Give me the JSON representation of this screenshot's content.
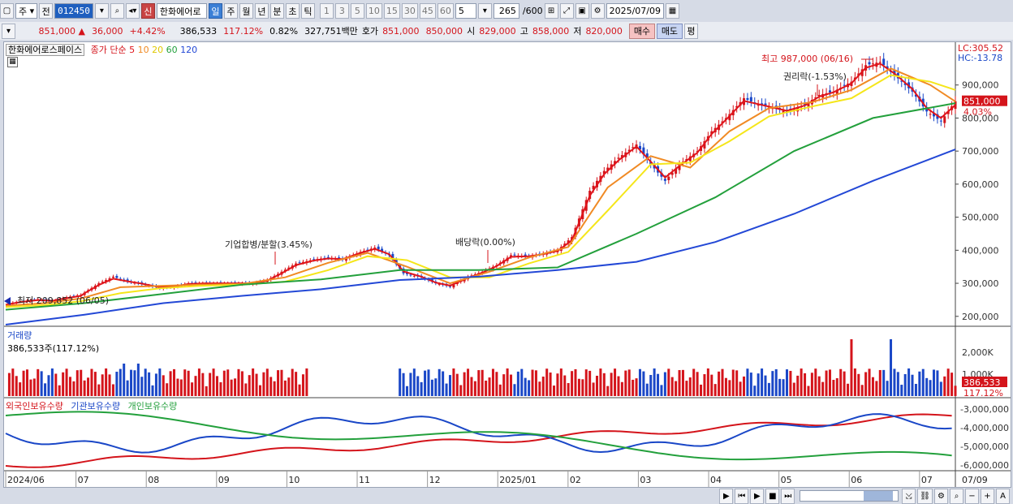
{
  "toolbar": {
    "period_main": "주",
    "prev_label": "전",
    "code": "012450",
    "new_badge": "신",
    "stock_name": "한화에어로",
    "periods": [
      "일",
      "주",
      "월",
      "년",
      "분",
      "초",
      "틱"
    ],
    "intervals": [
      "1",
      "3",
      "5",
      "10",
      "15",
      "30",
      "45",
      "60"
    ],
    "interval_value": "5",
    "count_value": "265",
    "count_total": "/600",
    "date": "2025/07/09"
  },
  "info": {
    "price": "851,000",
    "change": "36,000",
    "change_pct": "+4.42%",
    "volume": "386,533",
    "vol_ratio": "117.12%",
    "turnover": "0.82%",
    "amount": "327,751백만",
    "quote_label": "호가",
    "ask": "851,000",
    "bid": "850,000",
    "open_label": "시",
    "open": "829,000",
    "high_label": "고",
    "high": "858,000",
    "low_label": "저",
    "low": "820,000",
    "buy_label": "매수",
    "sell_label": "매도",
    "eval_label": "평"
  },
  "chart_data": {
    "type": "line",
    "title": "한화에어로스페이스",
    "legend": [
      "종가 단순",
      "5",
      "10",
      "20",
      "60",
      "120"
    ],
    "y_axis": [
      "900,000",
      "800,000",
      "700,000",
      "600,000",
      "500,000",
      "400,000",
      "300,000",
      "200,000"
    ],
    "ylim": [
      170000,
      1000000
    ],
    "x_axis": [
      "2024/06",
      "07",
      "08",
      "09",
      "10",
      "11",
      "12",
      "2025/01",
      "02",
      "03",
      "04",
      "05",
      "06",
      "07"
    ],
    "x_right_label": "07/09",
    "annotations": {
      "high": "최고 987,000 (06/16)",
      "low": "최저 209,852 (06/05)",
      "merger": "기업합병/분할(3.45%)",
      "dividend": "배당락(0.00%)",
      "rights": "권리락(-1.53%)"
    },
    "lc_label": "LC:305.52",
    "hc_label": "HC:-13.78",
    "price_tag": "851,000",
    "pct_tag": "4.03%",
    "series": [
      {
        "name": "종가",
        "color": "#1a47c7",
        "x": [
          0,
          4,
          9,
          13,
          17,
          21,
          22,
          26,
          30,
          34,
          38,
          43,
          47,
          51,
          56,
          60,
          64,
          69,
          73,
          77,
          81,
          86,
          90,
          94,
          99,
          103,
          107,
          111,
          116,
          120,
          124,
          129,
          133,
          137,
          141,
          146,
          150,
          154,
          158,
          163,
          167,
          171,
          176,
          180,
          184,
          188,
          193,
          197,
          201,
          206,
          210,
          214,
          218,
          223,
          227,
          231,
          236,
          240,
          244,
          248,
          253,
          257,
          261,
          265
        ],
        "values": [
          238000,
          245000,
          252000,
          246000,
          258000,
          265000,
          272000,
          300000,
          320000,
          305000,
          298000,
          285000,
          290000,
          300000,
          300000,
          300000,
          300000,
          300000,
          310000,
          335000,
          360000,
          372000,
          378000,
          372000,
          395000,
          408000,
          385000,
          330000,
          318000,
          300000,
          290000,
          320000,
          335000,
          355000,
          385000,
          382000,
          390000,
          400000,
          440000,
          580000,
          640000,
          680000,
          720000,
          660000,
          610000,
          660000,
          700000,
          760000,
          800000,
          860000,
          840000,
          830000,
          820000,
          840000,
          870000,
          880000,
          910000,
          960000,
          970000,
          930000,
          880000,
          820000,
          790000,
          851000
        ]
      },
      {
        "name": "5",
        "color": "#e0141b",
        "x": [
          0,
          4,
          9,
          13,
          17,
          21,
          22,
          26,
          30,
          34,
          38,
          43,
          47,
          51,
          56,
          60,
          64,
          69,
          73,
          77,
          81,
          86,
          90,
          94,
          99,
          103,
          107,
          111,
          116,
          120,
          124,
          129,
          133,
          137,
          141,
          146,
          150,
          154,
          158,
          163,
          167,
          171,
          176,
          180,
          184,
          188,
          193,
          197,
          201,
          206,
          210,
          214,
          218,
          223,
          227,
          231,
          236,
          240,
          244,
          248,
          253,
          257,
          261,
          265
        ],
        "values": [
          235000,
          243000,
          249000,
          247000,
          255000,
          262000,
          270000,
          295000,
          314000,
          306000,
          299000,
          288000,
          290000,
          298000,
          300000,
          300000,
          300000,
          300000,
          308000,
          330000,
          355000,
          369000,
          375000,
          373000,
          392000,
          404000,
          388000,
          336000,
          320000,
          302000,
          293000,
          316000,
          332000,
          352000,
          380000,
          382000,
          388000,
          398000,
          430000,
          565000,
          630000,
          672000,
          714000,
          668000,
          620000,
          655000,
          695000,
          752000,
          795000,
          852000,
          842000,
          832000,
          822000,
          838000,
          865000,
          878000,
          905000,
          952000,
          965000,
          935000,
          888000,
          830000,
          800000,
          840000
        ]
      },
      {
        "name": "10",
        "color": "#f08a24",
        "x": [
          0,
          11,
          21,
          32,
          43,
          54,
          66,
          78,
          90,
          101,
          112,
          124,
          135,
          146,
          157,
          168,
          180,
          191,
          202,
          213,
          225,
          236,
          247,
          258,
          265
        ],
        "values": [
          232000,
          240000,
          254000,
          288000,
          292000,
          296000,
          298000,
          318000,
          362000,
          392000,
          350000,
          300000,
          335000,
          378000,
          410000,
          590000,
          685000,
          650000,
          760000,
          830000,
          848000,
          885000,
          950000,
          900000,
          850000
        ]
      },
      {
        "name": "20",
        "color": "#f5e61a",
        "x": [
          0,
          11,
          21,
          32,
          43,
          54,
          66,
          78,
          90,
          101,
          112,
          124,
          135,
          146,
          157,
          168,
          180,
          191,
          202,
          213,
          225,
          236,
          247,
          258,
          265
        ],
        "values": [
          228000,
          234000,
          246000,
          270000,
          285000,
          292000,
          296000,
          305000,
          340000,
          382000,
          370000,
          318000,
          318000,
          360000,
          395000,
          520000,
          660000,
          665000,
          730000,
          805000,
          835000,
          860000,
          930000,
          910000,
          885000
        ]
      },
      {
        "name": "60",
        "color": "#23a03c",
        "x": [
          0,
          22,
          44,
          66,
          88,
          110,
          132,
          154,
          176,
          198,
          220,
          242,
          265
        ],
        "values": [
          220000,
          240000,
          268000,
          296000,
          312000,
          340000,
          340000,
          348000,
          450000,
          560000,
          700000,
          800000,
          845000
        ]
      },
      {
        "name": "120",
        "color": "#2348d6",
        "x": [
          0,
          22,
          44,
          66,
          88,
          110,
          132,
          154,
          176,
          198,
          220,
          242,
          265
        ],
        "values": [
          175000,
          205000,
          240000,
          262000,
          282000,
          310000,
          320000,
          340000,
          365000,
          425000,
          510000,
          610000,
          705000
        ]
      }
    ],
    "volume": {
      "label": "거래량",
      "value": "386,533주(117.12%)",
      "y_axis": [
        "2,000K",
        "1,000K"
      ],
      "tag_value": "386,533",
      "tag_pct": "117.12%"
    },
    "holdings": {
      "legend": [
        "외국인보유수량",
        "기관보유수량",
        "개인보유수량"
      ],
      "y_axis": [
        "-3,000,000",
        "-4,000,000",
        "-5,000,000",
        "-6,000,000"
      ]
    }
  }
}
